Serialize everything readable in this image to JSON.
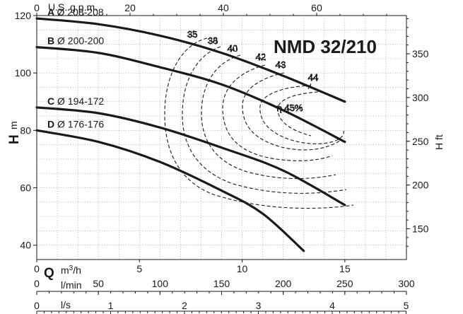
{
  "chart_data": {
    "type": "line",
    "title": "NMD 32/210",
    "x_axis": {
      "primary": {
        "unit": "m³/h",
        "min": 0,
        "max": 18,
        "ticks": [
          "0",
          "5",
          "10",
          "15"
        ],
        "tick_values": [
          0,
          5,
          10,
          15
        ]
      },
      "top": {
        "label": "U.S. g.p.m.",
        "ticks": [
          "0",
          "20",
          "40",
          "60"
        ],
        "tick_values": [
          0,
          20,
          40,
          60
        ]
      },
      "lmin": {
        "label": "l/min",
        "ticks": [
          "0",
          "50",
          "100",
          "150",
          "200",
          "250",
          "300"
        ],
        "tick_values": [
          0,
          50,
          100,
          150,
          200,
          250,
          300
        ]
      },
      "ls": {
        "label": "l/s",
        "ticks": [
          "0",
          "1",
          "2",
          "3",
          "4",
          "5"
        ],
        "tick_values": [
          0,
          1,
          2,
          3,
          4,
          5
        ]
      },
      "q_label": "Q"
    },
    "y_axis": {
      "left": {
        "label": "H",
        "unit": "m",
        "min": 35,
        "max": 120,
        "ticks": [
          "40",
          "60",
          "80",
          "100",
          "120"
        ],
        "tick_values": [
          40,
          60,
          80,
          100,
          120
        ]
      },
      "right": {
        "label": "H ft",
        "ticks": [
          "150",
          "200",
          "250",
          "300",
          "350"
        ],
        "tick_values": [
          150,
          200,
          250,
          300,
          350
        ]
      }
    },
    "series": [
      {
        "name": "A",
        "label": "Ø 208-208",
        "x": [
          0,
          3,
          6,
          9,
          12,
          15
        ],
        "y": [
          119,
          117,
          113,
          107,
          99,
          90
        ]
      },
      {
        "name": "B",
        "label": "Ø 200-200",
        "x": [
          0,
          3,
          6,
          9,
          12,
          15
        ],
        "y": [
          109,
          107,
          102,
          96,
          87,
          76
        ]
      },
      {
        "name": "C",
        "label": "Ø 194-172",
        "x": [
          0,
          3,
          6,
          9,
          12,
          15
        ],
        "y": [
          88,
          86,
          81,
          74,
          66,
          54
        ]
      },
      {
        "name": "D",
        "label": "Ø 176-176",
        "x": [
          0,
          3,
          6,
          9,
          11,
          13
        ],
        "y": [
          80,
          76,
          69,
          59,
          51,
          38
        ]
      }
    ],
    "efficiency_labels": [
      "35",
      "38",
      "40",
      "42",
      "43",
      "44",
      "η 45%"
    ],
    "grid": true
  }
}
